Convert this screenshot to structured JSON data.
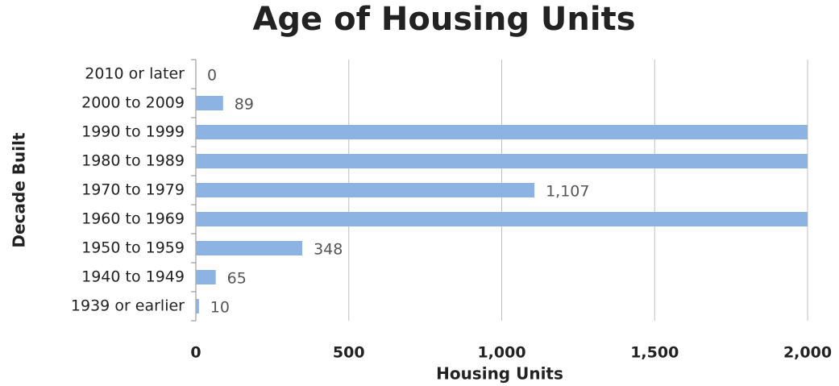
{
  "chart_data": {
    "type": "bar",
    "orientation": "horizontal",
    "title": "Age of Housing Units",
    "x_label": "Housing Units",
    "y_label": "Decade Built",
    "categories": [
      "2010 or later",
      "2000 to 2009",
      "1990 to 1999",
      "1980 to 1989",
      "1970 to 1979",
      "1960 to 1969",
      "1950 to 1959",
      "1940 to 1949",
      "1939 or earlier"
    ],
    "values": [
      0,
      89,
      2000,
      2000,
      1107,
      2000,
      348,
      65,
      10
    ],
    "value_labels": [
      "0",
      "89",
      null,
      null,
      "1,107",
      null,
      "348",
      "65",
      "10"
    ],
    "color": "#8db3e2",
    "xlim": [
      0,
      2000
    ],
    "xticks": [
      0,
      500,
      {
        "value": 1000,
        "label": "1,000"
      },
      {
        "value": 1500,
        "label": "1,500"
      },
      {
        "value": 2000,
        "label": "2,000"
      }
    ],
    "grid": true
  }
}
